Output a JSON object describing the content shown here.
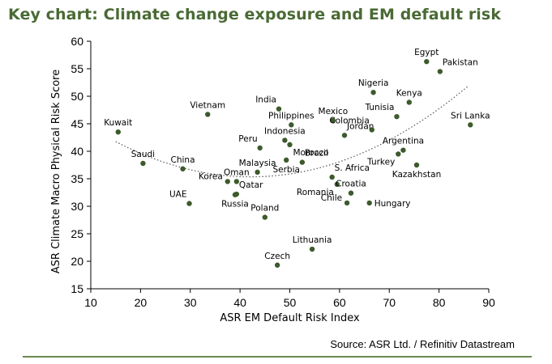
{
  "title": "Key chart: Climate change exposure and EM default risk",
  "source": "Source: ASR Ltd. / Refinitiv Datastream",
  "colors": {
    "title": "#4a6a35",
    "marker": "#3d5a2c",
    "trend": "#555555",
    "rule": "#6b8a4e"
  },
  "chart_data": {
    "type": "scatter",
    "xlabel": "ASR EM Default Risk Index",
    "ylabel": "ASR Climate Macro Physical Risk Score",
    "xlim": [
      10,
      90
    ],
    "ylim": [
      15,
      60
    ],
    "xticks": [
      10,
      20,
      30,
      40,
      50,
      60,
      70,
      80,
      90
    ],
    "yticks": [
      15,
      20,
      25,
      30,
      35,
      40,
      45,
      50,
      55,
      60
    ],
    "grid": false,
    "trendline": {
      "kind": "polynomial-2",
      "style": "dotted",
      "x_range": [
        15,
        86
      ]
    },
    "points": [
      {
        "label": "Kuwait",
        "x": 15.5,
        "y": 43.5,
        "anchor": "above"
      },
      {
        "label": "Saudi",
        "x": 20.5,
        "y": 37.8,
        "anchor": "above"
      },
      {
        "label": "Vietnam",
        "x": 33.5,
        "y": 46.7,
        "anchor": "above"
      },
      {
        "label": "China",
        "x": 28.5,
        "y": 36.8,
        "anchor": "above"
      },
      {
        "label": "UAE",
        "x": 29.8,
        "y": 30.5,
        "anchor": "above-left"
      },
      {
        "label": "Korea",
        "x": 37.5,
        "y": 34.5,
        "anchor": "left"
      },
      {
        "label": "Oman",
        "x": 39.3,
        "y": 34.5,
        "anchor": "above"
      },
      {
        "label": "Qatar",
        "x": 39.3,
        "y": 32.2,
        "anchor": "above-right"
      },
      {
        "label": "Russia",
        "x": 39.0,
        "y": 32.1,
        "anchor": "below"
      },
      {
        "label": "Malaysia",
        "x": 43.5,
        "y": 36.2,
        "anchor": "above"
      },
      {
        "label": "Poland",
        "x": 45.0,
        "y": 28.0,
        "anchor": "above"
      },
      {
        "label": "Peru",
        "x": 44.0,
        "y": 40.6,
        "anchor": "above-left"
      },
      {
        "label": "India",
        "x": 47.8,
        "y": 47.7,
        "anchor": "above-left"
      },
      {
        "label": "Philippines",
        "x": 50.3,
        "y": 44.8,
        "anchor": "above"
      },
      {
        "label": "Indonesia",
        "x": 49.0,
        "y": 42.0,
        "anchor": "above"
      },
      {
        "label": "Morocco",
        "x": 50.0,
        "y": 41.2,
        "anchor": "below-right"
      },
      {
        "label": "Serbia",
        "x": 49.3,
        "y": 38.4,
        "anchor": "below"
      },
      {
        "label": "Brazil",
        "x": 52.5,
        "y": 38.0,
        "anchor": "above-right"
      },
      {
        "label": "Czech",
        "x": 47.5,
        "y": 19.3,
        "anchor": "above"
      },
      {
        "label": "Lithuania",
        "x": 54.5,
        "y": 22.2,
        "anchor": "above"
      },
      {
        "label": "Mexico",
        "x": 58.7,
        "y": 45.6,
        "anchor": "above"
      },
      {
        "label": "Jordan",
        "x": 61.0,
        "y": 42.9,
        "anchor": "above-right"
      },
      {
        "label": "S. Africa",
        "x": 58.5,
        "y": 35.3,
        "anchor": "above-right"
      },
      {
        "label": "Romania",
        "x": 59.5,
        "y": 34.0,
        "anchor": "below-left"
      },
      {
        "label": "Croatia",
        "x": 62.3,
        "y": 32.4,
        "anchor": "above"
      },
      {
        "label": "Chile",
        "x": 61.5,
        "y": 30.6,
        "anchor": "left"
      },
      {
        "label": "Hungary",
        "x": 66.0,
        "y": 30.6,
        "anchor": "right"
      },
      {
        "label": "Nigeria",
        "x": 66.8,
        "y": 50.7,
        "anchor": "above"
      },
      {
        "label": "Colombia",
        "x": 66.5,
        "y": 43.9,
        "anchor": "above-left"
      },
      {
        "label": "Tunisia",
        "x": 71.5,
        "y": 46.3,
        "anchor": "above-left"
      },
      {
        "label": "Kenya",
        "x": 74.0,
        "y": 48.9,
        "anchor": "above"
      },
      {
        "label": "Argentina",
        "x": 72.8,
        "y": 40.2,
        "anchor": "above"
      },
      {
        "label": "Turkey",
        "x": 71.8,
        "y": 39.5,
        "anchor": "below-left"
      },
      {
        "label": "Kazakhstan",
        "x": 75.5,
        "y": 37.5,
        "anchor": "below"
      },
      {
        "label": "Egypt",
        "x": 77.5,
        "y": 56.3,
        "anchor": "above"
      },
      {
        "label": "Pakistan",
        "x": 80.2,
        "y": 54.5,
        "anchor": "above-right"
      },
      {
        "label": "Sri Lanka",
        "x": 86.3,
        "y": 44.8,
        "anchor": "above"
      }
    ]
  }
}
